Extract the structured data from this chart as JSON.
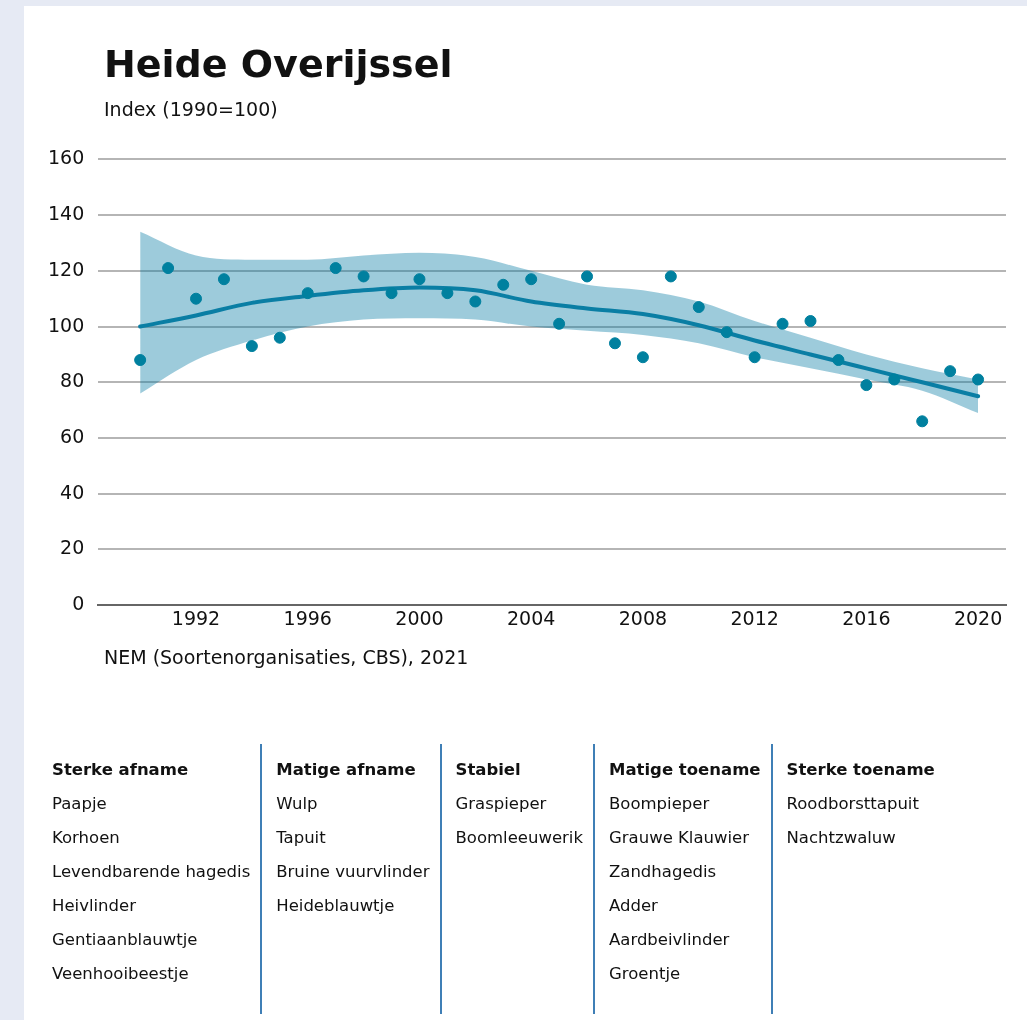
{
  "chart_data": [
    {
      "type": "scatter",
      "title": "Heide Overijssel",
      "subtitle": "Index (1990=100)",
      "annotations": [
        "NEM (Soortenorganisaties, CBS), 2021"
      ],
      "xlim": [
        1988.5,
        2021
      ],
      "xticks": [
        1992,
        1996,
        2000,
        2004,
        2008,
        2012,
        2016,
        2020
      ],
      "ylim": [
        0,
        160
      ],
      "yticks": [
        0,
        20,
        40,
        60,
        80,
        100,
        120,
        140,
        160
      ],
      "grid": "y",
      "legend": false,
      "series": [
        {
          "marker": "circle",
          "color": "#00809f",
          "x": [
            1990,
            1991,
            1992,
            1993,
            1994,
            1995,
            1996,
            1997,
            1998,
            1999,
            2000,
            2001,
            2002,
            2003,
            2004,
            2005,
            2006,
            2007,
            2008,
            2009,
            2010,
            2011,
            2012,
            2013,
            2014,
            2015,
            2016,
            2017,
            2018,
            2019,
            2020
          ],
          "values": [
            88,
            121,
            110,
            117,
            93,
            96,
            112,
            121,
            118,
            112,
            117,
            112,
            109,
            115,
            117,
            101,
            118,
            94,
            89,
            118,
            107,
            98,
            89,
            101,
            102,
            88,
            79,
            81,
            66,
            84,
            81
          ]
        },
        {
          "type": "line",
          "marker": "none",
          "color": "#0a7ea4",
          "x": [
            1990,
            1992,
            1994,
            1996,
            1998,
            2000,
            2002,
            2004,
            2006,
            2008,
            2010,
            2012,
            2014,
            2016,
            2018,
            2020
          ],
          "values": [
            100,
            104,
            108.5,
            111,
            113,
            114,
            113,
            109,
            106.5,
            104.5,
            100.5,
            95,
            90,
            85,
            80,
            75
          ],
          "lower": [
            76,
            88,
            95,
            100,
            102.5,
            103,
            102.5,
            100,
            98.5,
            97,
            94,
            89,
            85,
            81,
            77,
            69
          ],
          "upper": [
            134,
            125.5,
            124,
            124,
            125.5,
            126.5,
            125,
            120,
            115,
            113,
            109,
            102,
            96,
            90,
            85,
            81
          ]
        }
      ]
    },
    {
      "type": "other",
      "categories": [
        "Sterke afname",
        "Matige afname",
        "Stabiel",
        "Matige toename",
        "Sterke toename"
      ],
      "annotations": [
        {
          "text": "Paapje",
          "x": "Sterke afname"
        },
        {
          "text": "Korhoen",
          "x": "Sterke afname"
        },
        {
          "text": "Levendbarende hagedis",
          "x": "Sterke afname"
        },
        {
          "text": "Heivlinder",
          "x": "Sterke afname"
        },
        {
          "text": "Gentiaanblauwtje",
          "x": "Sterke afname"
        },
        {
          "text": "Veenhooibeestje",
          "x": "Sterke afname"
        },
        {
          "text": "Wulp",
          "x": "Matige afname"
        },
        {
          "text": "Tapuit",
          "x": "Matige afname"
        },
        {
          "text": "Bruine vuurvlinder",
          "x": "Matige afname"
        },
        {
          "text": "Heideblauwtje",
          "x": "Matige afname"
        },
        {
          "text": "Graspieper",
          "x": "Stabiel"
        },
        {
          "text": "Boomleeuwerik",
          "x": "Stabiel"
        },
        {
          "text": "Boompieper",
          "x": "Matige toename"
        },
        {
          "text": "Grauwe Klauwier",
          "x": "Matige toename"
        },
        {
          "text": "Zandhagedis",
          "x": "Matige toename"
        },
        {
          "text": "Adder",
          "x": "Matige toename"
        },
        {
          "text": "Aardbeivlinder",
          "x": "Matige toename"
        },
        {
          "text": "Groentje",
          "x": "Matige toename"
        },
        {
          "text": "Roodborsttapuit",
          "x": "Sterke toename"
        },
        {
          "text": "Nachtzwaluw",
          "x": "Sterke toename"
        }
      ]
    }
  ]
}
